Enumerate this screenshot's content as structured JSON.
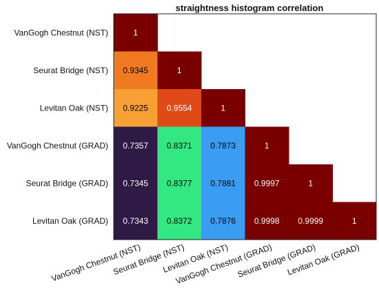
{
  "chart_data": {
    "type": "heatmap",
    "title": "straightness histogram correlation",
    "xlabel": "",
    "ylabel": "",
    "row_labels": [
      "VanGogh Chestnut (NST)",
      "Seurat Bridge  (NST)",
      "Levitan Oak  (NST)",
      "VanGogh Chestnut (GRAD)",
      "Seurat Bridge (GRAD)",
      "Levitan Oak (GRAD)"
    ],
    "col_labels": [
      "VanGogh Chestnut (NST)",
      "Seurat Bridge  (NST)",
      "Levitan Oak  (NST)",
      "VanGogh Chestnut (GRAD)",
      "Seurat Bridge (GRAD)",
      "Levitan Oak (GRAD)"
    ],
    "value_labels": [
      [
        "1",
        null,
        null,
        null,
        null,
        null
      ],
      [
        "0.9345",
        "1",
        null,
        null,
        null,
        null
      ],
      [
        "0.9225",
        "0.9554",
        "1",
        null,
        null,
        null
      ],
      [
        "0.7357",
        "0.8371",
        "0.7873",
        "1",
        null,
        null
      ],
      [
        "0.7345",
        "0.8377",
        "0.7881",
        "0.9997",
        "1",
        null
      ],
      [
        "0.7343",
        "0.8372",
        "0.7876",
        "0.9998",
        "0.9999",
        "1"
      ]
    ],
    "cell_colors": [
      [
        "#7a0000",
        null,
        null,
        null,
        null,
        null
      ],
      [
        "#f07a20",
        "#7a0000",
        null,
        null,
        null,
        null
      ],
      [
        "#f7a035",
        "#e04a18",
        "#7a0000",
        null,
        null,
        null
      ],
      [
        "#2e1a45",
        "#33e882",
        "#3a9cf2",
        "#7a0000",
        null,
        null
      ],
      [
        "#2e1a45",
        "#33e882",
        "#3a9cf2",
        "#7a0000",
        "#7a0000",
        null
      ],
      [
        "#2e1a45",
        "#33e882",
        "#3a9cf2",
        "#7a0000",
        "#7a0000",
        "#7a0000"
      ]
    ],
    "text_colors": [
      [
        "#ffffff",
        null,
        null,
        null,
        null,
        null
      ],
      [
        "#000000",
        "#ffffff",
        null,
        null,
        null,
        null
      ],
      [
        "#000000",
        "#ffffff",
        "#ffffff",
        null,
        null,
        null
      ],
      [
        "#ffffff",
        "#000000",
        "#000000",
        "#ffffff",
        null,
        null
      ],
      [
        "#ffffff",
        "#000000",
        "#000000",
        "#ffffff",
        "#ffffff",
        null
      ],
      [
        "#ffffff",
        "#000000",
        "#000000",
        "#ffffff",
        "#ffffff",
        "#ffffff"
      ]
    ]
  }
}
